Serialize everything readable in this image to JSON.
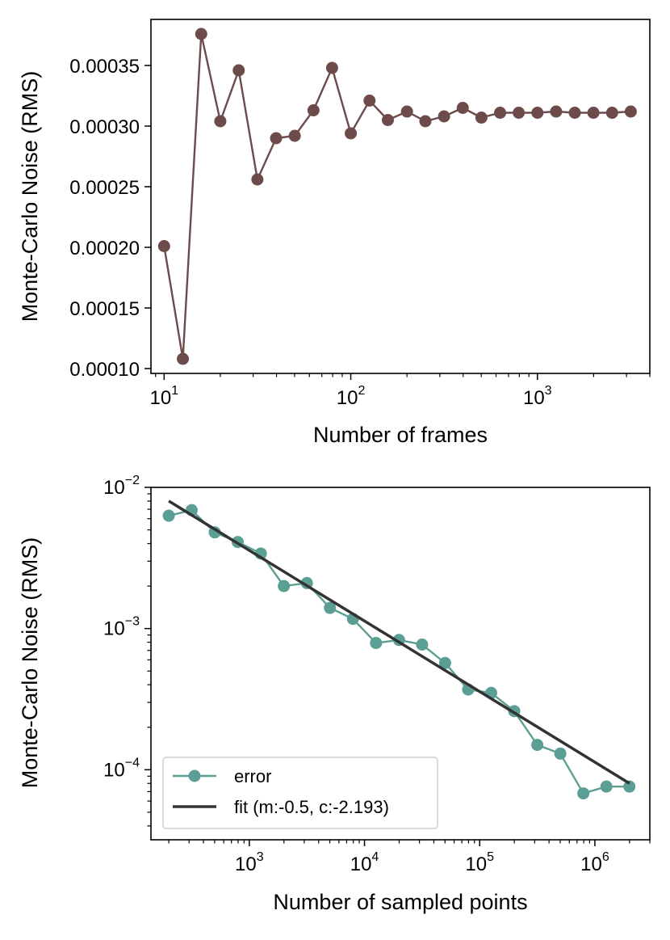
{
  "colors": {
    "frames_series": "#6e4b4b",
    "error_series": "#5b9e94",
    "fit_line": "#333333",
    "axes": "#000000"
  },
  "chart_data": [
    {
      "type": "line",
      "title": "",
      "xlabel": "Number of frames",
      "ylabel": "Monte-Carlo Noise (RMS)",
      "xscale": "log",
      "xlim": [
        8.5,
        4000
      ],
      "ylim": [
        9.6e-05,
        0.000388
      ],
      "xticks": [
        {
          "value": 10,
          "base": "10",
          "exp": "1"
        },
        {
          "value": 100,
          "base": "10",
          "exp": "2"
        },
        {
          "value": 1000,
          "base": "10",
          "exp": "3"
        }
      ],
      "yticks": [
        {
          "value": 0.0001,
          "label": "0.00010"
        },
        {
          "value": 0.00015,
          "label": "0.00015"
        },
        {
          "value": 0.0002,
          "label": "0.00020"
        },
        {
          "value": 0.00025,
          "label": "0.00025"
        },
        {
          "value": 0.0003,
          "label": "0.00030"
        },
        {
          "value": 0.00035,
          "label": "0.00035"
        }
      ],
      "grid": false,
      "series": [
        {
          "marker": "circle",
          "x": [
            10,
            12.6,
            15.8,
            20,
            25.1,
            31.6,
            39.8,
            50.1,
            63.1,
            79.4,
            100,
            126,
            158,
            200,
            251,
            316,
            398,
            501,
            631,
            794,
            1000,
            1259,
            1585,
            1995,
            2512,
            3162
          ],
          "y": [
            0.000201,
            0.000108,
            0.000376,
            0.000304,
            0.000346,
            0.000256,
            0.00029,
            0.000292,
            0.000313,
            0.000348,
            0.000294,
            0.000321,
            0.000305,
            0.000312,
            0.000304,
            0.000308,
            0.000315,
            0.000307,
            0.000311,
            0.000311,
            0.000311,
            0.000312,
            0.000311,
            0.000311,
            0.000311,
            0.000312
          ]
        }
      ]
    },
    {
      "type": "line",
      "title": "",
      "xlabel": "Number of sampled points",
      "ylabel": "Monte-Carlo Noise (RMS)",
      "xscale": "log",
      "yscale": "log",
      "xlim": [
        140,
        3000000
      ],
      "ylim": [
        3.19e-05,
        0.01
      ],
      "xticks": [
        {
          "value": 1000,
          "base": "10",
          "exp": "3"
        },
        {
          "value": 10000,
          "base": "10",
          "exp": "4"
        },
        {
          "value": 100000,
          "base": "10",
          "exp": "5"
        },
        {
          "value": 1000000,
          "base": "10",
          "exp": "6"
        }
      ],
      "yticks": [
        {
          "value": 0.0001,
          "base": "10",
          "exp": "−4"
        },
        {
          "value": 0.001,
          "base": "10",
          "exp": "−3"
        },
        {
          "value": 0.01,
          "base": "10",
          "exp": "−2"
        }
      ],
      "grid": false,
      "legend_position": "lower-left",
      "series": [
        {
          "name": "error",
          "marker": "circle",
          "x": [
            200,
            316,
            501,
            794,
            1259,
            1995,
            3162,
            5012,
            7943,
            12589,
            19953,
            31623,
            50119,
            79433,
            125893,
            199526,
            316228,
            501187,
            794328,
            1258925,
            1995262
          ],
          "y": [
            0.0063,
            0.0069,
            0.0048,
            0.0041,
            0.0034,
            0.002,
            0.0021,
            0.0014,
            0.00117,
            0.00079,
            0.00083,
            0.00077,
            0.00057,
            0.00037,
            0.00035,
            0.00026,
            0.00015,
            0.00013,
            6.8e-05,
            7.6e-05,
            7.6e-05
          ]
        },
        {
          "name": "fit (m:-0.5, c:-2.193)",
          "marker": "none",
          "x": [
            200,
            2000000
          ],
          "y": [
            0.008,
            8e-05
          ]
        }
      ]
    }
  ]
}
